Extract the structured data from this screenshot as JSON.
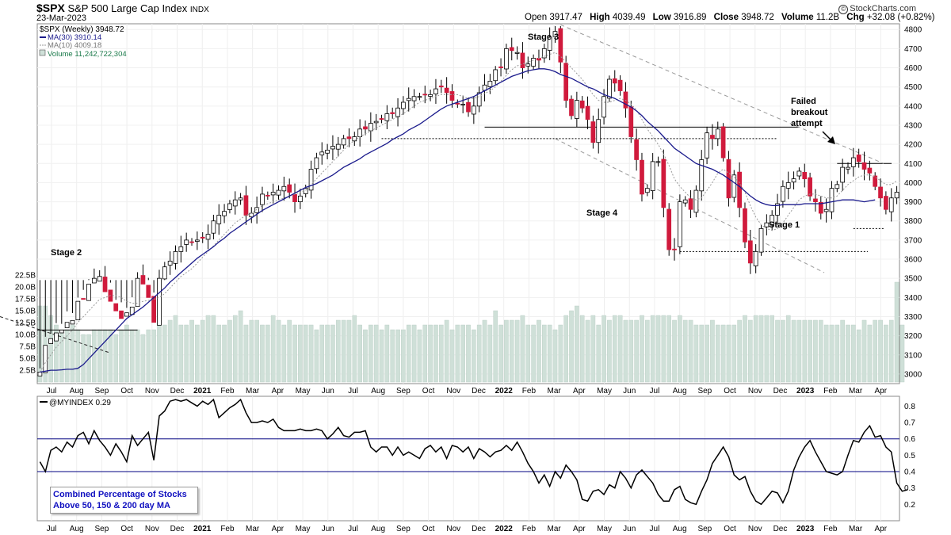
{
  "header": {
    "ticker": "$SPX",
    "name": "S&P 500 Large Cap Index",
    "exchange": "INDX",
    "date": "23-Mar-2023",
    "open_label": "Open",
    "open": "3917.47",
    "high_label": "High",
    "high": "4039.49",
    "low_label": "Low",
    "low": "3916.89",
    "close_label": "Close",
    "close": "3948.72",
    "volume_label": "Volume",
    "volume": "11.2B",
    "chg_label": "Chg",
    "chg": "+32.08 (+0.82%)",
    "logo": "StockCharts.com",
    "logo_mark": "©"
  },
  "legend": {
    "spx": "$SPX (Weekly) 3948.72",
    "ma30": "MA(30) 3910.14",
    "ma10": "MA(10) 4009.18",
    "volume": "Volume 11,242,722,304",
    "myindex": "@MYINDEX 0.29"
  },
  "annotations": {
    "stage1": "Stage 1",
    "stage2": "Stage 2",
    "stage3": "Stage 3",
    "stage4": "Stage 4",
    "failed_line1": "Failed",
    "failed_line2": "breakout",
    "failed_line3": "attempt",
    "box_line1": "Combined Percentage of Stocks",
    "box_line2": "Above 50, 150 & 200 day MA"
  },
  "colors": {
    "up": "#ffffff",
    "down": "#d01a3c",
    "ma30": "#1a1a8c",
    "ma10": "#9a9a9a",
    "volume": "#cfe0d8",
    "indicator": "#000000",
    "level_line": "#000080"
  },
  "chart_data": [
    {
      "type": "candlestick",
      "ylim": [
        2950,
        4830
      ],
      "ytick_labels": [
        "3000",
        "3100",
        "3200",
        "3300",
        "3400",
        "3500",
        "3600",
        "3700",
        "3800",
        "3900",
        "4000",
        "4100",
        "4200",
        "4300",
        "4400",
        "4500",
        "4600",
        "4700",
        "4800"
      ],
      "xtick_labels": [
        "Jul",
        "Aug",
        "Sep",
        "Oct",
        "Nov",
        "Dec",
        "2021",
        "Feb",
        "Mar",
        "Apr",
        "May",
        "Jun",
        "Jul",
        "Aug",
        "Sep",
        "Oct",
        "Nov",
        "Dec",
        "2022",
        "Feb",
        "Mar",
        "Apr",
        "May",
        "Jun",
        "Jul",
        "Aug",
        "Sep",
        "Oct",
        "Nov",
        "Dec",
        "2023",
        "Feb",
        "Mar",
        "Apr"
      ],
      "close": [
        3010,
        3150,
        3185,
        3215,
        3230,
        3270,
        3280,
        3380,
        3390,
        3470,
        3500,
        3510,
        3430,
        3380,
        3330,
        3290,
        3320,
        3350,
        3500,
        3470,
        3400,
        3270,
        3500,
        3560,
        3590,
        3640,
        3665,
        3700,
        3690,
        3700,
        3710,
        3730,
        3800,
        3830,
        3850,
        3890,
        3910,
        3920,
        3830,
        3840,
        3870,
        3940,
        3930,
        3950,
        3960,
        3980,
        3950,
        3900,
        3930,
        3970,
        4070,
        4130,
        4160,
        4170,
        4190,
        4200,
        4230,
        4230,
        4240,
        4280,
        4280,
        4310,
        4320,
        4330,
        4360,
        4360,
        4390,
        4420,
        4440,
        4450,
        4450,
        4460,
        4460,
        4490,
        4500,
        4470,
        4430,
        4410,
        4410,
        4370,
        4400,
        4470,
        4510,
        4530,
        4590,
        4600,
        4700,
        4690,
        4680,
        4600,
        4620,
        4650,
        4640,
        4700,
        4760,
        4790,
        4630,
        4430,
        4350,
        4430,
        4390,
        4330,
        4210,
        4330,
        4450,
        4540,
        4520,
        4480,
        4390,
        4240,
        4120,
        3940,
        3970,
        4110,
        4110,
        3870,
        3650,
        3650,
        3900,
        3910,
        3860,
        3960,
        4120,
        4260,
        4230,
        4280,
        4130,
        3920,
        4040,
        3870,
        3690,
        3580,
        3640,
        3760,
        3790,
        3830,
        3890,
        3980,
        4000,
        4020,
        4060,
        4020,
        3930,
        3900,
        3840,
        3860,
        3970,
        3990,
        4080,
        4080,
        4130,
        4110,
        4070,
        4050,
        3980,
        3920,
        3860,
        3920,
        3950
      ],
      "high_max": 4818,
      "low_min": 3491,
      "reference_lines": {
        "resistance_2022": 4290,
        "support_2022": 4230,
        "range_high_2023": 4100,
        "range_low_2023": 3760,
        "low_2022": 3640,
        "level_2020": 3230
      }
    },
    {
      "type": "line",
      "name": "MA(30)",
      "values": [
        3010,
        3015,
        3020,
        3020,
        3022,
        3025,
        3025,
        3030,
        3050,
        3080,
        3110,
        3140,
        3170,
        3200,
        3230,
        3260,
        3290,
        3310,
        3330,
        3350,
        3375,
        3400,
        3425,
        3450,
        3480,
        3505,
        3530,
        3555,
        3580,
        3605,
        3625,
        3645,
        3665,
        3690,
        3710,
        3735,
        3755,
        3775,
        3795,
        3815,
        3835,
        3855,
        3870,
        3885,
        3900,
        3915,
        3930,
        3945,
        3960,
        3975,
        3985,
        3995,
        4010,
        4025,
        4040,
        4060,
        4080,
        4095,
        4110,
        4125,
        4145,
        4160,
        4175,
        4190,
        4205,
        4225,
        4240,
        4255,
        4275,
        4290,
        4305,
        4325,
        4345,
        4365,
        4385,
        4400,
        4410,
        4420,
        4430,
        4440,
        4450,
        4465,
        4480,
        4495,
        4510,
        4525,
        4540,
        4555,
        4565,
        4575,
        4585,
        4590,
        4595,
        4595,
        4590,
        4580,
        4565,
        4555,
        4545,
        4530,
        4515,
        4500,
        4490,
        4475,
        4460,
        4450,
        4440,
        4425,
        4410,
        4395,
        4375,
        4350,
        4320,
        4295,
        4270,
        4240,
        4210,
        4180,
        4160,
        4140,
        4120,
        4100,
        4090,
        4080,
        4070,
        4055,
        4040,
        4020,
        4000,
        3980,
        3955,
        3930,
        3910,
        3895,
        3885,
        3880,
        3880,
        3885,
        3885,
        3885,
        3885,
        3890,
        3890,
        3890,
        3890,
        3895,
        3900,
        3905,
        3910,
        3910,
        3910,
        3905,
        3900,
        3905,
        3910
      ]
    },
    {
      "type": "line",
      "name": "MA(10)",
      "values": [
        3010,
        3060,
        3100,
        3140,
        3170,
        3200,
        3230,
        3270,
        3300,
        3330,
        3360,
        3390,
        3400,
        3410,
        3410,
        3400,
        3380,
        3370,
        3370,
        3380,
        3385,
        3390,
        3400,
        3420,
        3450,
        3480,
        3510,
        3530,
        3550,
        3580,
        3610,
        3640,
        3670,
        3700,
        3730,
        3760,
        3790,
        3810,
        3830,
        3840,
        3860,
        3880,
        3890,
        3900,
        3910,
        3920,
        3930,
        3940,
        3950,
        3960,
        3990,
        4020,
        4050,
        4080,
        4110,
        4140,
        4170,
        4200,
        4220,
        4240,
        4255,
        4270,
        4285,
        4300,
        4315,
        4330,
        4345,
        4360,
        4380,
        4400,
        4420,
        4430,
        4440,
        4450,
        4460,
        4460,
        4460,
        4460,
        4450,
        4440,
        4440,
        4450,
        4465,
        4480,
        4500,
        4530,
        4560,
        4590,
        4610,
        4620,
        4630,
        4640,
        4650,
        4660,
        4670,
        4680,
        4660,
        4630,
        4600,
        4570,
        4540,
        4500,
        4460,
        4430,
        4420,
        4420,
        4430,
        4440,
        4430,
        4410,
        4380,
        4330,
        4280,
        4240,
        4200,
        4150,
        4090,
        4020,
        3980,
        3950,
        3920,
        3910,
        3920,
        3960,
        4000,
        4050,
        4070,
        4050,
        4030,
        4000,
        3950,
        3880,
        3820,
        3780,
        3760,
        3750,
        3760,
        3790,
        3830,
        3870,
        3910,
        3930,
        3940,
        3940,
        3930,
        3920,
        3920,
        3930,
        3960,
        3990,
        4010,
        4030,
        4040,
        4040,
        4030,
        4010,
        3990,
        3990,
        4010
      ]
    },
    {
      "type": "bar",
      "name": "Volume",
      "ytick_labels": [
        "2.5B",
        "5.0B",
        "7.5B",
        "10.0B",
        "12.5B",
        "15.0B",
        "17.5B",
        "20.0B",
        "22.5B"
      ],
      "ylim": [
        0,
        24
      ],
      "values": [
        16,
        16,
        14,
        12,
        11,
        11,
        12,
        11,
        10,
        10,
        11,
        11,
        11,
        11,
        10,
        11,
        12,
        11,
        11,
        10,
        11,
        11,
        13,
        12,
        13,
        14,
        12,
        12,
        13,
        12,
        13,
        14,
        14,
        12,
        12,
        13,
        14,
        15,
        12,
        13,
        13,
        12,
        12,
        14,
        13,
        12,
        13,
        12,
        12,
        12,
        12,
        11,
        12,
        12,
        12,
        13,
        13,
        13,
        14,
        12,
        11,
        12,
        12,
        11,
        12,
        11,
        11,
        11,
        12,
        12,
        11,
        12,
        12,
        12,
        12,
        13,
        11,
        12,
        12,
        12,
        11,
        12,
        13,
        12,
        15,
        12,
        13,
        13,
        13,
        14,
        12,
        12,
        13,
        12,
        12,
        11,
        12,
        14,
        15,
        16,
        14,
        13,
        14,
        12,
        14,
        13,
        14,
        14,
        13,
        13,
        13,
        14,
        13,
        14,
        14,
        14,
        14,
        13,
        14,
        13,
        13,
        12,
        12,
        12,
        13,
        12,
        12,
        12,
        12,
        13,
        14,
        13,
        14,
        14,
        14,
        14,
        13,
        13,
        14,
        13,
        13,
        13,
        13,
        13,
        13,
        12,
        12,
        12,
        13,
        12,
        12,
        11,
        13,
        12,
        13,
        13,
        12,
        13,
        21,
        12
      ]
    },
    {
      "type": "line",
      "name": "@MYINDEX",
      "ylim": [
        0.1,
        0.86
      ],
      "ytick_labels": [
        "0.2",
        "0.3",
        "0.4",
        "0.5",
        "0.6",
        "0.7",
        "0.8"
      ],
      "levels": [
        0.4,
        0.6
      ],
      "values": [
        0.46,
        0.4,
        0.53,
        0.55,
        0.52,
        0.58,
        0.55,
        0.62,
        0.64,
        0.57,
        0.65,
        0.59,
        0.55,
        0.5,
        0.57,
        0.52,
        0.46,
        0.62,
        0.56,
        0.6,
        0.64,
        0.47,
        0.74,
        0.77,
        0.83,
        0.84,
        0.83,
        0.84,
        0.82,
        0.8,
        0.83,
        0.81,
        0.84,
        0.73,
        0.76,
        0.79,
        0.81,
        0.84,
        0.76,
        0.7,
        0.7,
        0.71,
        0.7,
        0.72,
        0.67,
        0.65,
        0.65,
        0.65,
        0.66,
        0.65,
        0.65,
        0.66,
        0.65,
        0.6,
        0.63,
        0.67,
        0.62,
        0.61,
        0.64,
        0.64,
        0.65,
        0.55,
        0.52,
        0.55,
        0.55,
        0.5,
        0.55,
        0.5,
        0.52,
        0.5,
        0.48,
        0.54,
        0.56,
        0.52,
        0.55,
        0.48,
        0.56,
        0.55,
        0.52,
        0.55,
        0.48,
        0.54,
        0.52,
        0.49,
        0.52,
        0.53,
        0.56,
        0.53,
        0.58,
        0.52,
        0.45,
        0.4,
        0.33,
        0.38,
        0.31,
        0.4,
        0.36,
        0.44,
        0.4,
        0.35,
        0.23,
        0.22,
        0.28,
        0.29,
        0.26,
        0.32,
        0.3,
        0.4,
        0.36,
        0.3,
        0.38,
        0.41,
        0.37,
        0.33,
        0.26,
        0.22,
        0.22,
        0.29,
        0.31,
        0.23,
        0.21,
        0.2,
        0.28,
        0.35,
        0.45,
        0.5,
        0.55,
        0.49,
        0.38,
        0.35,
        0.37,
        0.28,
        0.22,
        0.2,
        0.24,
        0.28,
        0.27,
        0.21,
        0.28,
        0.41,
        0.49,
        0.55,
        0.59,
        0.52,
        0.46,
        0.4,
        0.39,
        0.38,
        0.4,
        0.5,
        0.59,
        0.58,
        0.64,
        0.68,
        0.61,
        0.62,
        0.55,
        0.52,
        0.33,
        0.28,
        0.29
      ]
    }
  ]
}
